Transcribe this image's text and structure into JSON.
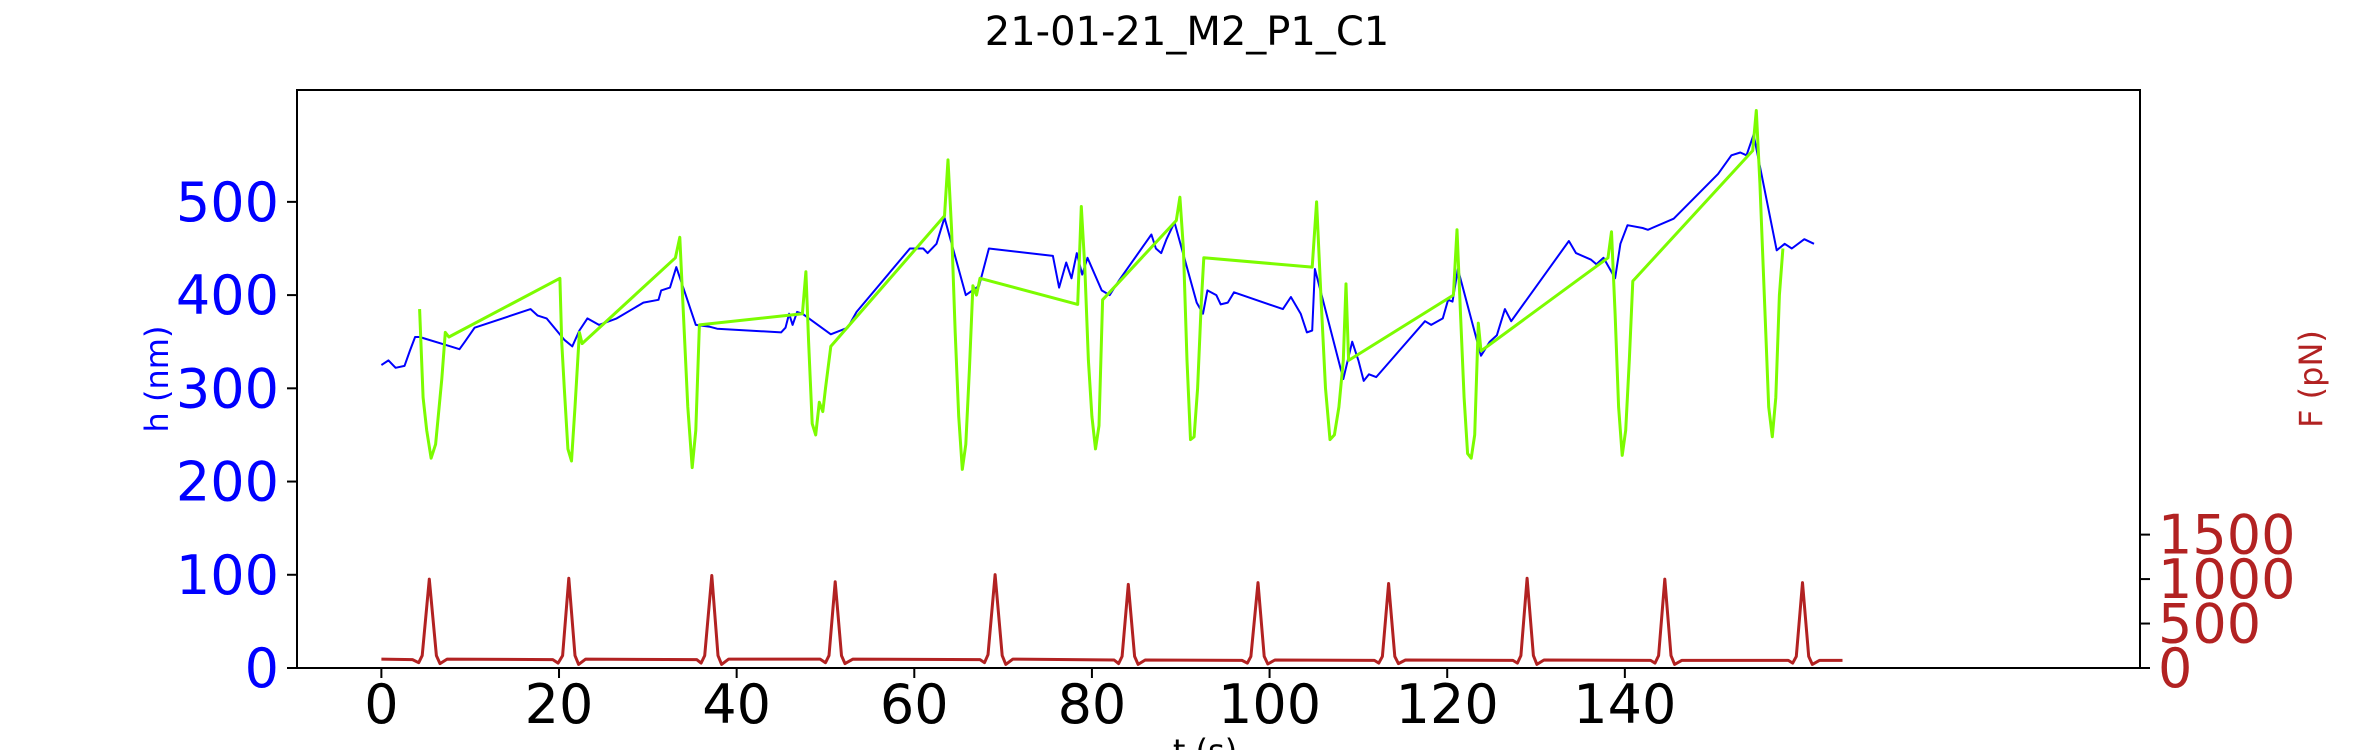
{
  "chart_data": {
    "type": "line",
    "title": "21-01-21_M2_P1_C1",
    "xlabel": "t (s)",
    "ylabel_left": "h (nm)",
    "ylabel_right": "F (pN)",
    "xlim": [
      -9.5,
      198
    ],
    "ylim_left": [
      0,
      620
    ],
    "ylim_right": [
      0,
      6500
    ],
    "x_ticks": [
      "0",
      "20",
      "40",
      "60",
      "80",
      "100",
      "120",
      "140"
    ],
    "x_tick_values": [
      0,
      20,
      40,
      60,
      80,
      100,
      120,
      140
    ],
    "y_left_ticks": [
      "0",
      "100",
      "200",
      "300",
      "400",
      "500"
    ],
    "y_left_tick_values": [
      0,
      100,
      200,
      300,
      400,
      500
    ],
    "y_right_ticks": [
      "0",
      "500",
      "1000",
      "1500"
    ],
    "y_right_tick_values": [
      0,
      500,
      1000,
      1500
    ],
    "grid": false,
    "colors": {
      "h_series": "#0000ff",
      "h_highlight": "#7cfc00",
      "force": "#b22222",
      "left_axis": "#0000ff",
      "right_axis": "#b22222"
    },
    "series": [
      {
        "axis": "left",
        "color": "#0000ff",
        "points": [
          [
            0,
            325
          ],
          [
            0.8,
            330
          ],
          [
            1.6,
            322
          ],
          [
            2.6,
            324
          ],
          [
            3.2,
            340
          ],
          [
            3.8,
            355
          ],
          [
            4.3,
            355
          ],
          [
            7.8,
            345
          ],
          [
            8.8,
            342
          ],
          [
            9.4,
            350
          ],
          [
            10.5,
            365
          ],
          [
            16.8,
            385
          ],
          [
            17.6,
            378
          ],
          [
            18.6,
            375
          ],
          [
            20.6,
            352
          ],
          [
            21.5,
            345
          ],
          [
            22.3,
            362
          ],
          [
            23.2,
            375
          ],
          [
            24.5,
            368
          ],
          [
            26.5,
            375
          ],
          [
            29.5,
            392
          ],
          [
            31.2,
            395
          ],
          [
            31.5,
            405
          ],
          [
            32.5,
            408
          ],
          [
            33.2,
            430
          ],
          [
            35.4,
            368
          ],
          [
            37,
            366
          ],
          [
            37.8,
            364
          ],
          [
            45,
            360
          ],
          [
            45.5,
            365
          ],
          [
            45.9,
            380
          ],
          [
            46.3,
            368
          ],
          [
            46.8,
            382
          ],
          [
            47.4,
            380
          ],
          [
            50.6,
            358
          ],
          [
            52.5,
            365
          ],
          [
            53.5,
            382
          ],
          [
            59.5,
            450
          ],
          [
            61,
            450
          ],
          [
            61.5,
            445
          ],
          [
            62.5,
            455
          ],
          [
            63.4,
            483
          ],
          [
            65.8,
            400
          ],
          [
            67.3,
            410
          ],
          [
            68.4,
            450
          ],
          [
            75.6,
            442
          ],
          [
            76.3,
            408
          ],
          [
            77.1,
            435
          ],
          [
            77.7,
            418
          ],
          [
            78.3,
            445
          ],
          [
            78.9,
            422
          ],
          [
            79.5,
            440
          ],
          [
            81.1,
            405
          ],
          [
            82,
            400
          ],
          [
            83,
            415
          ],
          [
            86.7,
            465
          ],
          [
            87.2,
            450
          ],
          [
            87.8,
            445
          ],
          [
            88.4,
            460
          ],
          [
            89.3,
            478
          ],
          [
            91.8,
            392
          ],
          [
            92.5,
            380
          ],
          [
            93,
            405
          ],
          [
            94,
            400
          ],
          [
            94.5,
            390
          ],
          [
            95.3,
            392
          ],
          [
            96,
            403
          ],
          [
            101.5,
            385
          ],
          [
            102.4,
            398
          ],
          [
            103.5,
            380
          ],
          [
            104.2,
            360
          ],
          [
            104.8,
            362
          ],
          [
            105.1,
            428
          ],
          [
            108.3,
            310
          ],
          [
            109.3,
            350
          ],
          [
            110,
            330
          ],
          [
            110.6,
            308
          ],
          [
            111.2,
            315
          ],
          [
            112,
            312
          ],
          [
            117.5,
            372
          ],
          [
            118.2,
            368
          ],
          [
            119.5,
            375
          ],
          [
            120.1,
            395
          ],
          [
            120.6,
            393
          ],
          [
            121.2,
            428
          ],
          [
            123.8,
            335
          ],
          [
            124.8,
            350
          ],
          [
            125.6,
            357
          ],
          [
            126.5,
            385
          ],
          [
            127.2,
            372
          ],
          [
            133.7,
            458
          ],
          [
            134.5,
            445
          ],
          [
            136.2,
            438
          ],
          [
            136.8,
            433
          ],
          [
            137.6,
            440
          ],
          [
            138.9,
            418
          ],
          [
            139.5,
            455
          ],
          [
            140.3,
            475
          ],
          [
            142,
            472
          ],
          [
            142.6,
            470
          ],
          [
            145.5,
            482
          ],
          [
            150.5,
            530
          ],
          [
            152,
            550
          ],
          [
            153,
            553
          ],
          [
            153.7,
            550
          ],
          [
            154.5,
            572
          ],
          [
            157.1,
            448
          ],
          [
            158,
            455
          ],
          [
            158.8,
            450
          ],
          [
            160.2,
            460
          ],
          [
            161.3,
            455
          ]
        ]
      },
      {
        "axis": "left",
        "color": "#7cfc00",
        "points": [
          [
            4.3,
            385
          ],
          [
            4.7,
            290
          ],
          [
            5.1,
            255
          ],
          [
            5.6,
            225
          ],
          [
            6.1,
            240
          ],
          [
            6.8,
            310
          ],
          [
            7.2,
            360
          ],
          [
            7.6,
            355
          ],
          [
            20.1,
            418
          ],
          [
            20.3,
            350
          ],
          [
            20.6,
            300
          ],
          [
            21,
            235
          ],
          [
            21.4,
            222
          ],
          [
            21.8,
            280
          ],
          [
            22.3,
            360
          ],
          [
            22.6,
            348
          ],
          [
            33.1,
            440
          ],
          [
            33.6,
            462
          ],
          [
            34,
            380
          ],
          [
            34.5,
            280
          ],
          [
            35,
            215
          ],
          [
            35.4,
            255
          ],
          [
            35.8,
            368
          ],
          [
            47.4,
            380
          ],
          [
            47.8,
            425
          ],
          [
            48.1,
            350
          ],
          [
            48.5,
            262
          ],
          [
            48.9,
            250
          ],
          [
            49.3,
            285
          ],
          [
            49.7,
            275
          ],
          [
            50,
            300
          ],
          [
            50.6,
            345
          ],
          [
            63.4,
            485
          ],
          [
            63.8,
            545
          ],
          [
            64.2,
            470
          ],
          [
            64.6,
            360
          ],
          [
            65,
            270
          ],
          [
            65.4,
            213
          ],
          [
            65.8,
            240
          ],
          [
            66.2,
            320
          ],
          [
            66.6,
            410
          ],
          [
            67,
            400
          ],
          [
            67.4,
            418
          ],
          [
            78.4,
            390
          ],
          [
            78.8,
            495
          ],
          [
            79.2,
            430
          ],
          [
            79.6,
            330
          ],
          [
            80,
            270
          ],
          [
            80.4,
            235
          ],
          [
            80.8,
            260
          ],
          [
            81.2,
            395
          ],
          [
            89.5,
            480
          ],
          [
            89.9,
            505
          ],
          [
            90.3,
            450
          ],
          [
            90.7,
            330
          ],
          [
            91.1,
            245
          ],
          [
            91.5,
            248
          ],
          [
            91.9,
            300
          ],
          [
            92.3,
            390
          ],
          [
            92.6,
            440
          ],
          [
            104.8,
            430
          ],
          [
            105.3,
            500
          ],
          [
            105.8,
            395
          ],
          [
            106.3,
            300
          ],
          [
            106.8,
            245
          ],
          [
            107.3,
            250
          ],
          [
            107.8,
            280
          ],
          [
            108.3,
            330
          ],
          [
            108.6,
            412
          ],
          [
            108.9,
            330
          ],
          [
            120.7,
            400
          ],
          [
            121.1,
            470
          ],
          [
            121.5,
            380
          ],
          [
            121.9,
            290
          ],
          [
            122.3,
            230
          ],
          [
            122.7,
            225
          ],
          [
            123.1,
            250
          ],
          [
            123.5,
            370
          ],
          [
            123.8,
            340
          ],
          [
            138.1,
            440
          ],
          [
            138.5,
            468
          ],
          [
            138.9,
            380
          ],
          [
            139.3,
            280
          ],
          [
            139.7,
            228
          ],
          [
            140.1,
            255
          ],
          [
            140.5,
            330
          ],
          [
            140.9,
            415
          ],
          [
            154.4,
            555
          ],
          [
            154.8,
            598
          ],
          [
            155.2,
            520
          ],
          [
            155.7,
            400
          ],
          [
            156.2,
            280
          ],
          [
            156.6,
            248
          ],
          [
            157,
            290
          ],
          [
            157.4,
            400
          ],
          [
            157.8,
            450
          ]
        ]
      },
      {
        "axis": "right",
        "color": "#b22222",
        "points": [
          [
            0,
            100
          ],
          [
            3.5,
            95
          ],
          [
            4.2,
            60
          ],
          [
            4.6,
            140
          ],
          [
            5.4,
            1000
          ],
          [
            6.2,
            140
          ],
          [
            6.6,
            50
          ],
          [
            7.4,
            100
          ],
          [
            19.3,
            95
          ],
          [
            19.9,
            55
          ],
          [
            20.4,
            140
          ],
          [
            21.1,
            1010
          ],
          [
            21.8,
            140
          ],
          [
            22.2,
            40
          ],
          [
            23,
            100
          ],
          [
            35.5,
            95
          ],
          [
            36,
            55
          ],
          [
            36.4,
            140
          ],
          [
            37.2,
            1040
          ],
          [
            37.9,
            140
          ],
          [
            38.3,
            40
          ],
          [
            39.1,
            100
          ],
          [
            49.4,
            100
          ],
          [
            50,
            60
          ],
          [
            50.4,
            140
          ],
          [
            51.1,
            970
          ],
          [
            51.8,
            140
          ],
          [
            52.2,
            50
          ],
          [
            53.1,
            100
          ],
          [
            67.4,
            95
          ],
          [
            67.9,
            60
          ],
          [
            68.3,
            150
          ],
          [
            69.1,
            1050
          ],
          [
            69.9,
            140
          ],
          [
            70.3,
            40
          ],
          [
            71.1,
            100
          ],
          [
            82.5,
            90
          ],
          [
            83,
            50
          ],
          [
            83.4,
            130
          ],
          [
            84.1,
            940
          ],
          [
            84.8,
            130
          ],
          [
            85.2,
            40
          ],
          [
            86,
            90
          ],
          [
            96.9,
            85
          ],
          [
            97.5,
            55
          ],
          [
            97.9,
            130
          ],
          [
            98.7,
            960
          ],
          [
            99.4,
            130
          ],
          [
            99.8,
            45
          ],
          [
            100.6,
            90
          ],
          [
            111.8,
            85
          ],
          [
            112.3,
            55
          ],
          [
            112.7,
            130
          ],
          [
            113.4,
            950
          ],
          [
            114.1,
            130
          ],
          [
            114.5,
            50
          ],
          [
            115.3,
            90
          ],
          [
            127.4,
            85
          ],
          [
            127.9,
            55
          ],
          [
            128.3,
            140
          ],
          [
            129,
            1010
          ],
          [
            129.7,
            140
          ],
          [
            130.1,
            40
          ],
          [
            130.9,
            90
          ],
          [
            142.9,
            85
          ],
          [
            143.4,
            55
          ],
          [
            143.8,
            140
          ],
          [
            144.5,
            1000
          ],
          [
            145.2,
            140
          ],
          [
            145.6,
            40
          ],
          [
            146.4,
            85
          ],
          [
            158.4,
            85
          ],
          [
            158.9,
            55
          ],
          [
            159.3,
            130
          ],
          [
            160,
            960
          ],
          [
            160.7,
            130
          ],
          [
            161.1,
            40
          ],
          [
            161.9,
            85
          ],
          [
            164.5,
            85
          ]
        ]
      }
    ]
  }
}
